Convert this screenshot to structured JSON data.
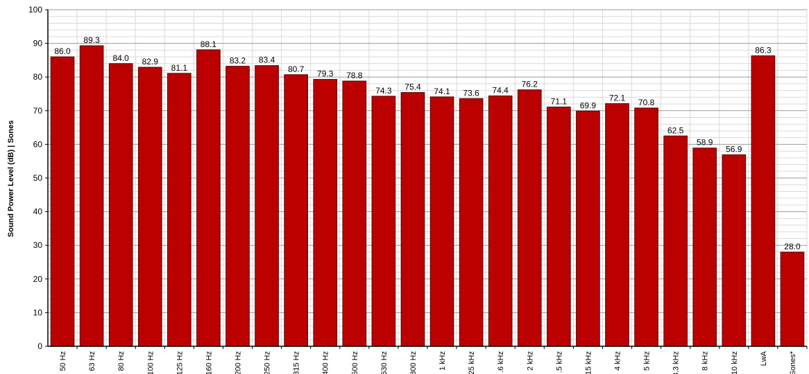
{
  "chart_data": {
    "type": "bar",
    "categories": [
      "50 Hz",
      "63 Hz",
      "80 Hz",
      "100 Hz",
      "125 Hz",
      "160 Hz",
      "200 Hz",
      "250 Hz",
      "315 Hz",
      "400 Hz",
      "500 Hz",
      "630 Hz",
      "800 Hz",
      "1 kHz",
      "25 kHz",
      ".6 kHz",
      "2 kHz",
      ".5 kHz",
      "15 kHz",
      "4 kHz",
      "5 kHz",
      "3.3 kHz",
      "8 kHz",
      "10 kHz",
      "LwA",
      "Sones*"
    ],
    "values": [
      86.0,
      89.3,
      84.0,
      82.9,
      81.1,
      88.1,
      83.2,
      83.4,
      80.7,
      79.3,
      78.8,
      74.3,
      75.4,
      74.1,
      73.6,
      74.4,
      76.2,
      71.1,
      69.9,
      72.1,
      70.8,
      62.5,
      58.9,
      56.9,
      86.3,
      28.0
    ],
    "value_labels": [
      "86.0",
      "89.3",
      "84.0",
      "82.9",
      "81.1",
      "88.1",
      "83.2",
      "83.4",
      "80.7",
      "79.3",
      "78.8",
      "74.3",
      "75.4",
      "74.1",
      "73.6",
      "74.4",
      "76.2",
      "71.1",
      "69.9",
      "72.1",
      "70.8",
      "62.5",
      "58.9",
      "56.9",
      "86.3",
      "28.0"
    ],
    "yticks": [
      0,
      10,
      20,
      30,
      40,
      50,
      60,
      70,
      80,
      90,
      100
    ],
    "ylim": [
      0,
      100
    ],
    "ylabel": "Sound Power Level (dB) | Sones",
    "xlabel": "",
    "title": "",
    "grid": true,
    "minor_grid_step": 2,
    "bar_color": "#bb0000",
    "bar_edge_color": "#5a0000",
    "grid_major_color": "#9a9a9a",
    "grid_minor_color": "#d9d9d9",
    "legend": "none"
  }
}
